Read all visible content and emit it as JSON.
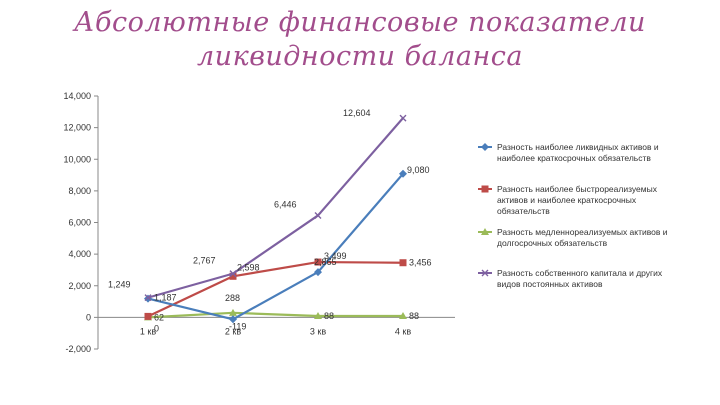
{
  "title": {
    "line1": "Абсолютные финансовые показатели",
    "line2": "ликвидности баланса"
  },
  "chart_data": {
    "type": "line",
    "categories": [
      "1 кв",
      "2 кв",
      "3 кв",
      "4 кв"
    ],
    "ylim": [
      -2000,
      14000
    ],
    "yticks": [
      -2000,
      0,
      2000,
      4000,
      6000,
      8000,
      10000,
      12000,
      14000
    ],
    "ytick_labels": [
      "-2,000",
      "0",
      "2,000",
      "4,000",
      "6,000",
      "8,000",
      "10,000",
      "12,000",
      "14,000"
    ],
    "grid": false,
    "legend_position": "right",
    "series": [
      {
        "name": "Разность наиболее ликвидных активов и наиболее краткосрочных обязательств",
        "color": "#4a7ebb",
        "marker": "diamond",
        "values": [
          1187,
          -119,
          2865,
          9080
        ],
        "labels": [
          "1,187",
          "-119",
          "2,865",
          "9,080"
        ]
      },
      {
        "name": "Разность наиболее быстрореализуемых активов и наиболее краткосрочных обязательств",
        "color": "#be4b48",
        "marker": "square",
        "values": [
          62,
          2598,
          3499,
          3456
        ],
        "labels": [
          "62",
          "2,598",
          "3,499",
          "3,456"
        ]
      },
      {
        "name": "Разность медленнореализуемых активов и долгосрочных обязательств",
        "color": "#9bbb59",
        "marker": "triangle",
        "values": [
          0,
          288,
          88,
          88
        ],
        "labels": [
          "0",
          "288",
          "88",
          "88"
        ]
      },
      {
        "name": "Разность собственного капитала и других видов постоянных активов",
        "color": "#7d60a0",
        "marker": "x",
        "values": [
          1249,
          2767,
          6446,
          12604
        ],
        "labels": [
          "1,249",
          "2,767",
          "6,446",
          "12,604"
        ]
      }
    ]
  }
}
